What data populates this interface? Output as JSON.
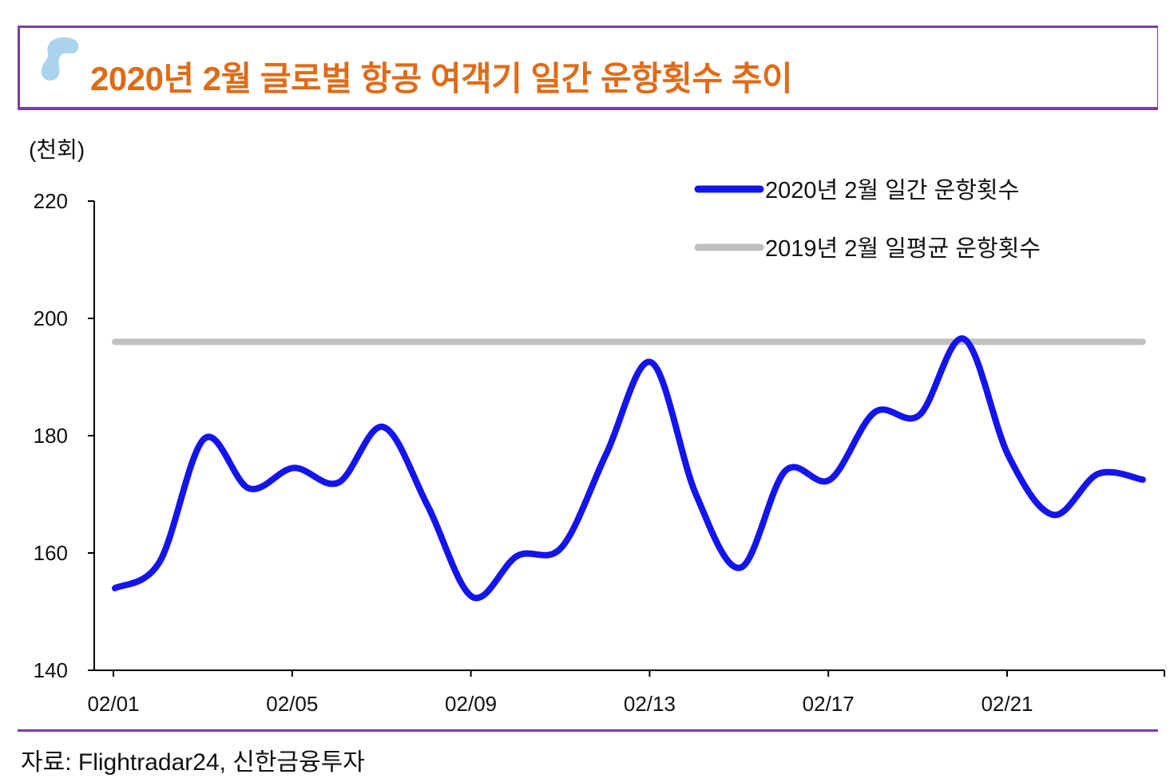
{
  "header": {
    "title": "2020년 2월 글로벌 항공 여객기 일간 운항횟수 추이"
  },
  "unit_label": "(천회)",
  "source": "자료: Flightradar24, 신한금융투자",
  "colors": {
    "accent": "#7a3ea8",
    "title": "#e06b16",
    "series_2020": "#1414ee",
    "series_2019": "#c0c0c0",
    "logo": "#a9d3ef"
  },
  "chart_data": {
    "type": "line",
    "title": "2020년 2월 글로벌 항공 여객기 일간 운항횟수 추이",
    "ylabel": "(천회)",
    "xlabel": "",
    "ylim": [
      140,
      220
    ],
    "yticks": [
      140,
      160,
      180,
      200,
      220
    ],
    "x": [
      "02/01",
      "02/02",
      "02/03",
      "02/04",
      "02/05",
      "02/06",
      "02/07",
      "02/08",
      "02/09",
      "02/10",
      "02/11",
      "02/12",
      "02/13",
      "02/14",
      "02/15",
      "02/16",
      "02/17",
      "02/18",
      "02/19",
      "02/20",
      "02/21",
      "02/22",
      "02/23",
      "02/24"
    ],
    "xtick_labels": [
      "02/01",
      "02/05",
      "02/09",
      "02/13",
      "02/17",
      "02/21"
    ],
    "legend_position": "top-right",
    "grid": false,
    "series": [
      {
        "name": "2020년 2월 일간 운항횟수",
        "color": "#1414ee",
        "values": [
          154.0,
          158.5,
          179.5,
          171.0,
          174.5,
          172.0,
          181.5,
          168.0,
          152.5,
          159.5,
          161.0,
          177.0,
          192.5,
          170.0,
          157.5,
          174.0,
          172.5,
          184.0,
          183.5,
          196.5,
          176.5,
          166.5,
          173.5,
          172.5
        ]
      },
      {
        "name": "2019년 2월 일평균 운항횟수",
        "color": "#c0c0c0",
        "values": [
          196,
          196,
          196,
          196,
          196,
          196,
          196,
          196,
          196,
          196,
          196,
          196,
          196,
          196,
          196,
          196,
          196,
          196,
          196,
          196,
          196,
          196,
          196,
          196
        ]
      }
    ]
  }
}
